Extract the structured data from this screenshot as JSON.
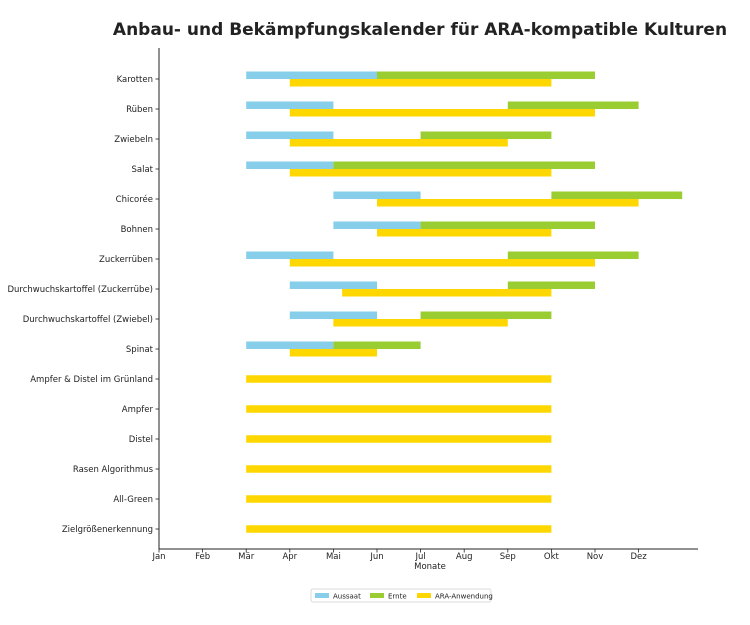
{
  "chart_data": {
    "type": "gantt",
    "title": "Anbau- und Bekämpfungskalender für ARA-kompatible Kulturen",
    "xlabel": "Monate",
    "ylabel": "",
    "x_ticks": [
      "Jan",
      "Feb",
      "Mär",
      "Apr",
      "Mai",
      "Jun",
      "Jul",
      "Aug",
      "Sep",
      "Okt",
      "Nov",
      "Dez"
    ],
    "x_range_months": [
      1,
      13.25
    ],
    "colors": {
      "Aussaat": "#87CEEB",
      "Ernte": "#9ACD32",
      "ARA-Anwendung": "#FFD700"
    },
    "legend": [
      "Aussaat",
      "Ernte",
      "ARA-Anwendung"
    ],
    "crops": [
      {
        "name": "Karotten",
        "aussaat": [
          3,
          6
        ],
        "ernte": [
          6,
          11
        ],
        "ara": [
          4,
          10
        ]
      },
      {
        "name": "Rüben",
        "aussaat": [
          3,
          5
        ],
        "ernte": [
          9,
          12
        ],
        "ara": [
          4,
          11
        ]
      },
      {
        "name": "Zwiebeln",
        "aussaat": [
          3,
          5
        ],
        "ernte": [
          7,
          10
        ],
        "ara": [
          4,
          9
        ]
      },
      {
        "name": "Salat",
        "aussaat": [
          3,
          5
        ],
        "ernte": [
          5,
          11
        ],
        "ara": [
          4,
          10
        ]
      },
      {
        "name": "Chicorée",
        "aussaat": [
          5,
          7
        ],
        "ernte": [
          10,
          13
        ],
        "ara": [
          6,
          12
        ]
      },
      {
        "name": "Bohnen",
        "aussaat": [
          5,
          7
        ],
        "ernte": [
          7,
          11
        ],
        "ara": [
          6,
          10
        ]
      },
      {
        "name": "Zuckerrüben",
        "aussaat": [
          3,
          5
        ],
        "ernte": [
          9,
          12
        ],
        "ara": [
          4,
          11
        ]
      },
      {
        "name": "Durchwuchskartoffel (Zuckerrübe)",
        "aussaat": [
          4,
          6
        ],
        "ernte": [
          9,
          11
        ],
        "ara": [
          5.2,
          10
        ]
      },
      {
        "name": "Durchwuchskartoffel (Zwiebel)",
        "aussaat": [
          4,
          6
        ],
        "ernte": [
          7,
          10
        ],
        "ara": [
          5,
          9
        ]
      },
      {
        "name": "Spinat",
        "aussaat": [
          3,
          5
        ],
        "ernte": [
          5,
          7
        ],
        "ara": [
          4,
          6
        ]
      },
      {
        "name": "Ampfer & Distel im Grünland",
        "aussaat": null,
        "ernte": null,
        "ara": [
          3,
          10
        ]
      },
      {
        "name": "Ampfer",
        "aussaat": null,
        "ernte": null,
        "ara": [
          3,
          10
        ]
      },
      {
        "name": "Distel",
        "aussaat": null,
        "ernte": null,
        "ara": [
          3,
          10
        ]
      },
      {
        "name": "Rasen Algorithmus",
        "aussaat": null,
        "ernte": null,
        "ara": [
          3,
          10
        ]
      },
      {
        "name": "All-Green",
        "aussaat": null,
        "ernte": null,
        "ara": [
          3,
          10
        ]
      },
      {
        "name": "Zielgrößenerkennung",
        "aussaat": null,
        "ernte": null,
        "ara": [
          3,
          10
        ]
      }
    ]
  }
}
